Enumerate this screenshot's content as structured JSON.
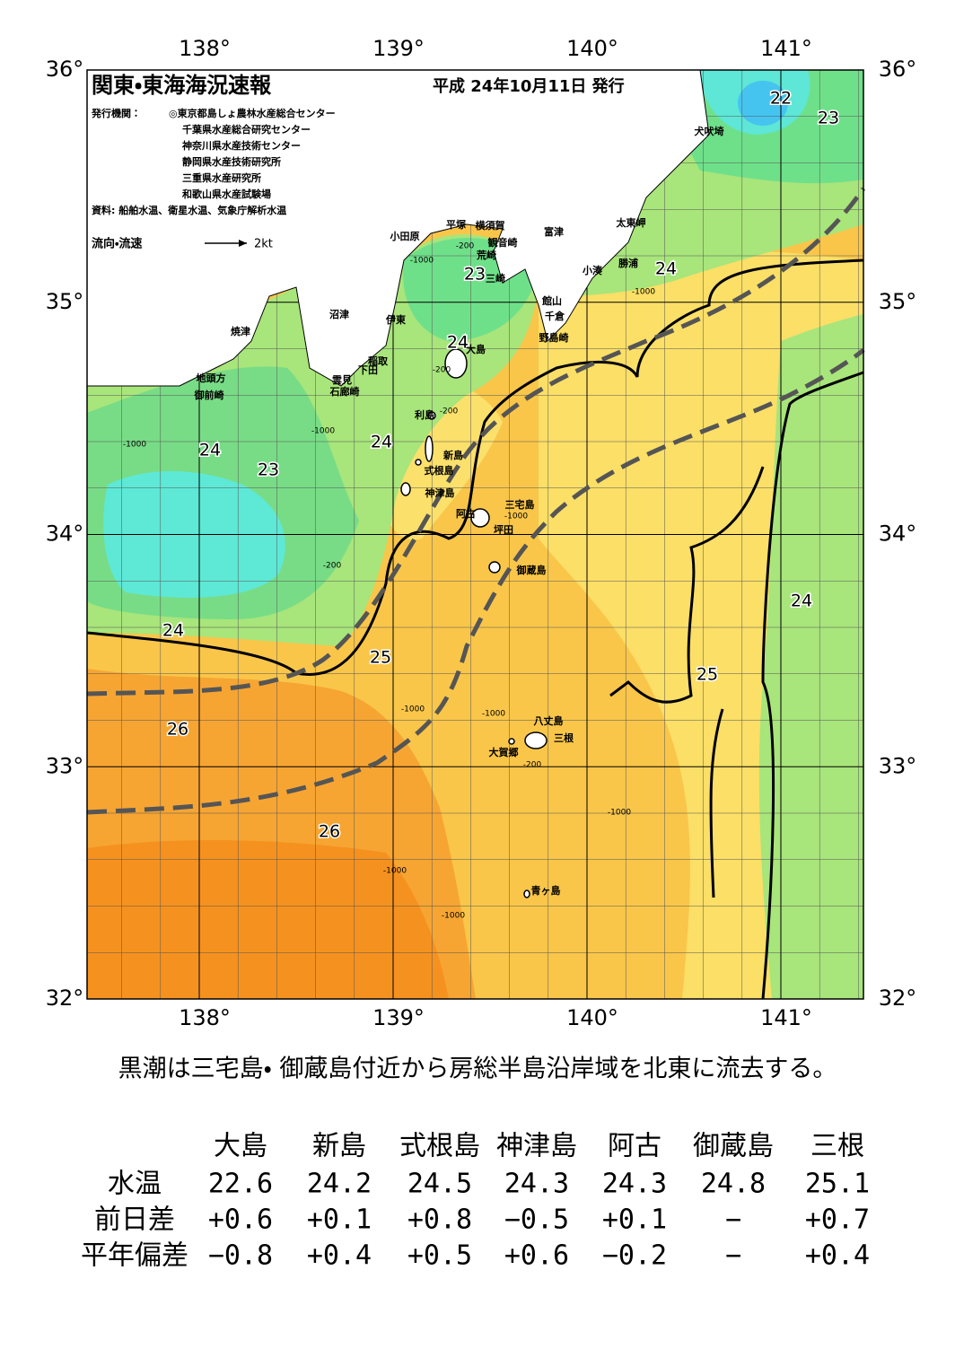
{
  "header": {
    "title": "関東・東海海況速報",
    "date": "平成 24年10月11日 発行",
    "issuers_label": "発行機関：",
    "issuers": [
      "◎東京都島しょ農林水産総合センター",
      "千葉県水産総合研究センター",
      "神奈川県水産技術センター",
      "静岡県水産技術研究所",
      "三重県水産研究所",
      "和歌山県水産試験場"
    ],
    "source": "資料: 船舶水温、衛星水温、気象庁解析水温",
    "legend": "流向・流速",
    "legend_scale": "2kt"
  },
  "axes": {
    "lon": [
      {
        "value": 138,
        "label": "138°"
      },
      {
        "value": 139,
        "label": "139°"
      },
      {
        "value": 140,
        "label": "140°"
      },
      {
        "value": 141,
        "label": "141°"
      }
    ],
    "lat": [
      {
        "value": 36,
        "label": "36°"
      },
      {
        "value": 35,
        "label": "35°"
      },
      {
        "value": 34,
        "label": "34°"
      },
      {
        "value": 33,
        "label": "33°"
      },
      {
        "value": 32,
        "label": "32°"
      }
    ]
  },
  "isotherms": [
    "22",
    "23",
    "24",
    "23",
    "24",
    "24",
    "24",
    "23",
    "24",
    "25",
    "25",
    "24",
    "26",
    "26"
  ],
  "depths": [
    "-200",
    "-1000",
    "-200",
    "-1000",
    "-200",
    "-1000",
    "-200",
    "-1000",
    "-1000",
    "-1000",
    "-1000",
    "-200",
    "-1000",
    "-1000",
    "-1000"
  ],
  "places": [
    "犬吠埼",
    "太東岬",
    "富津",
    "平塚",
    "横須賀",
    "観音崎",
    "荒崎",
    "三崎",
    "小田原",
    "勝浦",
    "小湊",
    "館山",
    "千倉",
    "野島崎",
    "沼津",
    "伊東",
    "焼津",
    "大島",
    "稲取",
    "下田",
    "雲見",
    "石廊崎",
    "地頭方",
    "御前崎",
    "利島",
    "新島",
    "式根島",
    "神津島",
    "三宅島",
    "阿古",
    "坪田",
    "御蔵島",
    "八丈島",
    "三根",
    "大賀郷",
    "青ヶ島"
  ],
  "summary": "黒潮は三宅島・ 御蔵島付近から房総半島沿岸域を北東に流去する。",
  "table": {
    "columns": [
      "大島",
      "新島",
      "式根島",
      "神津島",
      "阿古",
      "御蔵島",
      "三根"
    ],
    "rows": [
      {
        "label": "水温",
        "cells": [
          "22.6",
          "24.2",
          "24.5",
          "24.3",
          "24.3",
          "24.8",
          "25.1"
        ]
      },
      {
        "label": "前日差",
        "cells": [
          "+0.6",
          "+0.1",
          "+0.8",
          "−0.5",
          "+0.1",
          "−",
          "+0.7"
        ]
      },
      {
        "label": "平年偏差",
        "cells": [
          "−0.8",
          "+0.4",
          "+0.5",
          "+0.6",
          "−0.2",
          "−",
          "+0.4"
        ]
      }
    ]
  }
}
